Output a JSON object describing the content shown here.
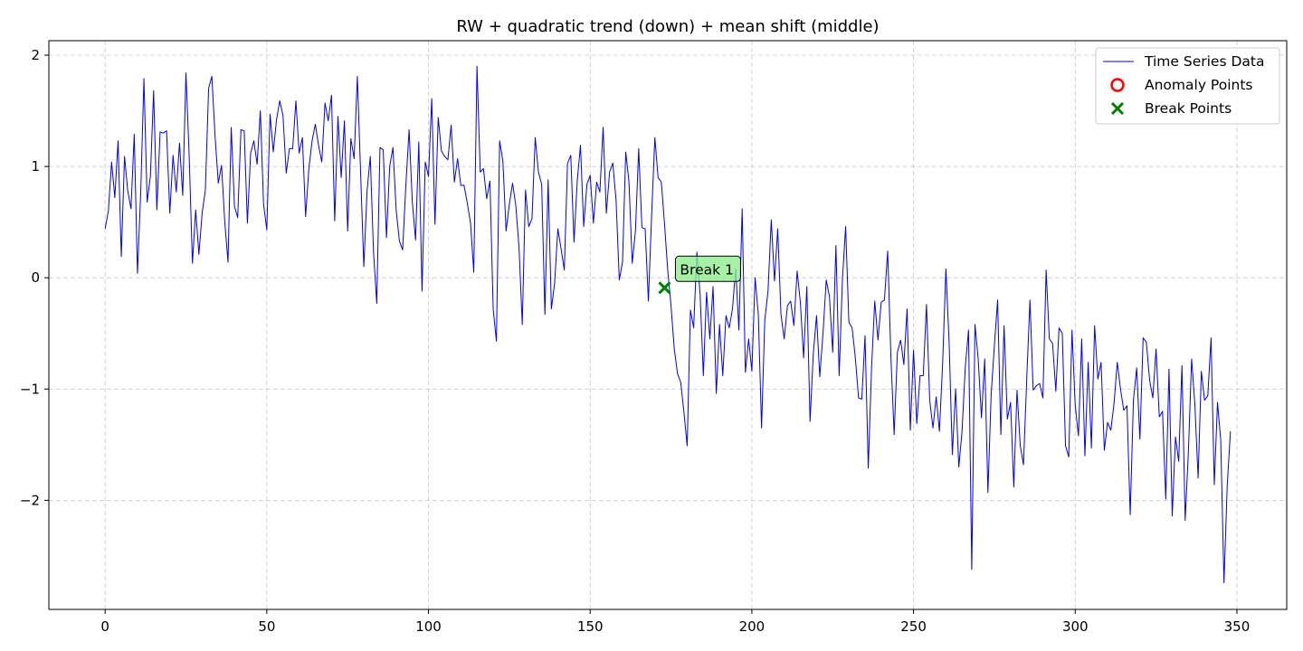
{
  "chart_data": {
    "type": "line",
    "title": "RW + quadratic trend (down) + mean shift (middle)",
    "xlabel": "",
    "ylabel": "",
    "xlim": [
      -17.4,
      365.4
    ],
    "ylim": [
      -2.98,
      2.13
    ],
    "xticks": [
      0,
      50,
      100,
      150,
      200,
      250,
      300,
      350
    ],
    "yticks": [
      -2,
      -1,
      0,
      1,
      2
    ],
    "ytick_labels": [
      "−2",
      "−1",
      "0",
      "1",
      "2"
    ],
    "grid": true,
    "legend_position": "top-right",
    "legend": [
      {
        "label": "Time Series Data",
        "kind": "line",
        "color": "#0000ff"
      },
      {
        "label": "Anomaly Points",
        "kind": "circle",
        "color": "#ff0000"
      },
      {
        "label": "Break Points",
        "kind": "x",
        "color": "#008000"
      }
    ],
    "series": [
      {
        "name": "Time Series Data",
        "color": "#0000ff",
        "x_start": 0,
        "values": [
          0.44,
          0.6,
          1.04,
          0.72,
          1.23,
          0.19,
          1.09,
          0.78,
          0.62,
          1.29,
          0.04,
          0.76,
          1.79,
          0.68,
          0.91,
          1.68,
          0.61,
          1.31,
          1.3,
          1.32,
          0.58,
          1.1,
          0.77,
          1.21,
          0.74,
          1.84,
          1.09,
          0.13,
          0.61,
          0.21,
          0.58,
          0.79,
          1.7,
          1.81,
          1.27,
          0.85,
          1.01,
          0.5,
          0.14,
          1.35,
          0.64,
          0.54,
          1.33,
          1.32,
          0.49,
          1.12,
          1.23,
          1.02,
          1.5,
          0.66,
          0.43,
          1.47,
          1.13,
          1.42,
          1.59,
          1.46,
          0.94,
          1.16,
          1.16,
          1.59,
          1.12,
          1.26,
          0.55,
          0.98,
          1.23,
          1.38,
          1.19,
          1.04,
          1.57,
          1.41,
          1.64,
          0.51,
          1.45,
          0.9,
          1.41,
          0.42,
          1.25,
          1.07,
          1.81,
          0.95,
          0.1,
          0.78,
          1.09,
          0.23,
          -0.23,
          1.17,
          1.15,
          0.36,
          1.0,
          1.17,
          0.61,
          0.33,
          0.25,
          0.83,
          1.33,
          0.68,
          0.34,
          1.22,
          -0.12,
          1.04,
          0.91,
          1.61,
          0.48,
          1.44,
          1.14,
          1.09,
          1.06,
          1.37,
          0.86,
          1.07,
          0.83,
          0.83,
          0.67,
          0.49,
          0.05,
          1.9,
          0.95,
          0.98,
          0.71,
          0.87,
          -0.28,
          -0.57,
          1.23,
          1.05,
          0.42,
          0.66,
          0.85,
          0.65,
          0.27,
          -0.42,
          0.79,
          0.46,
          0.53,
          1.26,
          0.95,
          0.84,
          -0.33,
          0.88,
          -0.28,
          -0.05,
          0.44,
          0.26,
          0.07,
          1.03,
          1.1,
          0.32,
          0.87,
          1.19,
          0.46,
          0.84,
          0.92,
          0.49,
          0.86,
          0.77,
          1.35,
          0.58,
          0.95,
          1.03,
          0.7,
          -0.02,
          0.14,
          1.13,
          0.86,
          0.13,
          0.42,
          1.16,
          0.45,
          0.44,
          -0.21,
          0.56,
          1.26,
          0.9,
          0.86,
          0.48,
          0.06,
          -0.25,
          -0.64,
          -0.86,
          -0.94,
          -1.21,
          -1.51,
          -0.29,
          -0.45,
          0.23,
          -0.15,
          -0.88,
          -0.13,
          -0.55,
          -0.08,
          -1.04,
          -0.42,
          -0.88,
          -0.34,
          -0.45,
          -0.28,
          0.08,
          -0.47,
          0.62,
          -0.85,
          -0.55,
          -0.84,
          0.0,
          -0.33,
          -1.35,
          -0.38,
          -0.12,
          0.52,
          -0.03,
          0.44,
          -0.33,
          -0.55,
          -0.25,
          -0.21,
          -0.43,
          0.06,
          -0.22,
          -0.72,
          -0.08,
          -1.29,
          -0.68,
          -0.34,
          -0.89,
          -0.5,
          -0.02,
          -0.17,
          -0.67,
          0.29,
          -0.88,
          -0.02,
          0.46,
          -0.4,
          -0.45,
          -0.72,
          -1.08,
          -1.09,
          -0.52,
          -1.71,
          -0.82,
          -0.21,
          -0.56,
          -0.22,
          -0.2,
          0.24,
          -0.71,
          -1.41,
          -0.67,
          -0.56,
          -0.78,
          -0.28,
          -1.37,
          -0.65,
          -1.31,
          -0.88,
          -0.88,
          -0.24,
          -1.1,
          -1.35,
          -1.07,
          -1.38,
          -0.77,
          0.08,
          -0.58,
          -1.59,
          -1.0,
          -1.7,
          -1.38,
          -0.8,
          -0.47,
          -2.62,
          -0.42,
          -0.73,
          -1.26,
          -0.73,
          -1.93,
          -1.05,
          -0.61,
          -0.2,
          -1.41,
          -0.43,
          -1.27,
          -1.12,
          -1.88,
          -1.01,
          -1.51,
          -1.68,
          -0.91,
          -0.2,
          -1.01,
          -0.97,
          -0.95,
          -1.08,
          0.07,
          -0.55,
          -0.59,
          -1.02,
          -0.45,
          -0.5,
          -1.51,
          -1.61,
          -0.47,
          -1.15,
          -1.42,
          -0.55,
          -1.6,
          -0.76,
          -1.53,
          -0.43,
          -0.91,
          -0.76,
          -1.55,
          -1.3,
          -1.37,
          -1.13,
          -0.76,
          -1.0,
          -1.19,
          -1.15,
          -2.13,
          -1.1,
          -0.81,
          -1.45,
          -0.54,
          -0.58,
          -0.92,
          -1.08,
          -0.64,
          -1.25,
          -1.2,
          -1.99,
          -0.82,
          -2.14,
          -1.43,
          -1.65,
          -0.79,
          -2.18,
          -1.56,
          -0.73,
          -1.14,
          -1.8,
          -0.84,
          -1.1,
          -1.06,
          -0.54,
          -1.86,
          -1.12,
          -1.46,
          -2.74,
          -1.87,
          -1.38
        ]
      }
    ],
    "break_points": [
      {
        "x": 173,
        "y": -0.09,
        "label": "Break 1"
      }
    ],
    "anomaly_points": []
  }
}
